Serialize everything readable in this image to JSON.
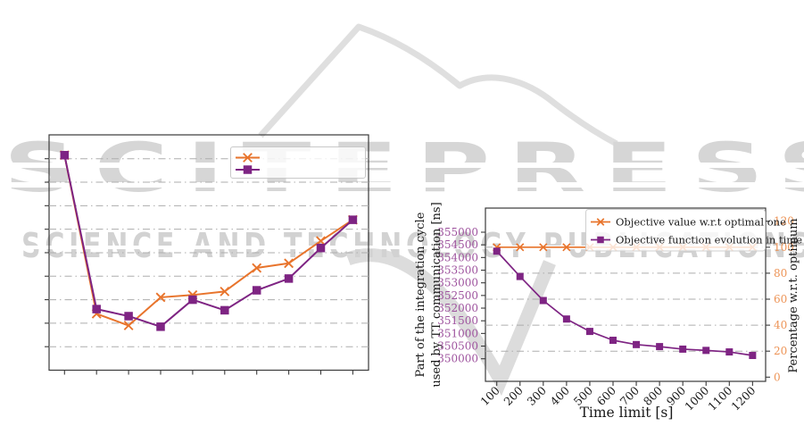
{
  "watermark": {
    "title": "SCITEPRESS",
    "tagline": "SCIENCE AND TECHNOLOGY PUBLICATIONS",
    "color": "#d6d6d6"
  },
  "colors": {
    "orange": "#E8742C",
    "purple": "#7E2483",
    "left_tick_label": "#9E539E",
    "right_tick_label": "#ED9457",
    "grid": "#ADADAD",
    "axis": "#3A3A3A",
    "text": "#1A1A1A"
  },
  "chart_data": [
    {
      "id": "left-chart",
      "type": "line",
      "title": "",
      "xlabel": "",
      "ylabel": "",
      "tick_labels_visible": false,
      "grid": true,
      "legend_position": "upper right",
      "legend_labels": [
        "",
        ""
      ],
      "x": [
        1,
        2,
        3,
        4,
        5,
        6,
        7,
        8,
        9,
        10
      ],
      "ylim": [
        0,
        10
      ],
      "series": [
        {
          "name": "",
          "color": "#E8742C",
          "marker": "x",
          "values": [
            9.15,
            2.4,
            1.9,
            3.1,
            3.2,
            3.35,
            4.35,
            4.55,
            5.5,
            6.4
          ]
        },
        {
          "name": "",
          "color": "#7E2483",
          "marker": "square",
          "values": [
            9.15,
            2.6,
            2.3,
            1.85,
            3.0,
            2.55,
            3.4,
            3.9,
            5.2,
            6.4
          ]
        }
      ]
    },
    {
      "id": "right-chart",
      "type": "line",
      "title": "",
      "xlabel": "Time limit [s]",
      "ylabel_left_lines": [
        "Part of the integration cycle",
        "used by TT communication [ns]"
      ],
      "ylabel_right": "Percentage w.r.t. optimum",
      "grid": true,
      "legend_position": "upper right",
      "x": [
        100,
        200,
        300,
        400,
        500,
        600,
        700,
        800,
        900,
        1000,
        1100,
        1200
      ],
      "yticks_left": [
        350000,
        350500,
        351000,
        351500,
        352000,
        352500,
        353000,
        353500,
        354000,
        354500,
        355000
      ],
      "yticks_right": [
        0,
        20,
        40,
        60,
        80,
        100,
        120
      ],
      "ylim_left": [
        349100,
        355950
      ],
      "ylim_right": [
        0,
        130
      ],
      "series": [
        {
          "name": "Objective value w.r.t optimal one",
          "color": "#E8742C",
          "marker": "x",
          "axis": "right",
          "values": [
            100,
            100,
            100,
            100,
            100,
            100,
            100,
            100,
            100,
            100,
            100,
            100
          ]
        },
        {
          "name": "Objective function evolution in time",
          "color": "#7E2483",
          "marker": "square",
          "axis": "left",
          "values": [
            354250,
            353250,
            352300,
            351570,
            351080,
            350730,
            350560,
            350480,
            350380,
            350330,
            350270,
            350130
          ]
        }
      ]
    }
  ]
}
